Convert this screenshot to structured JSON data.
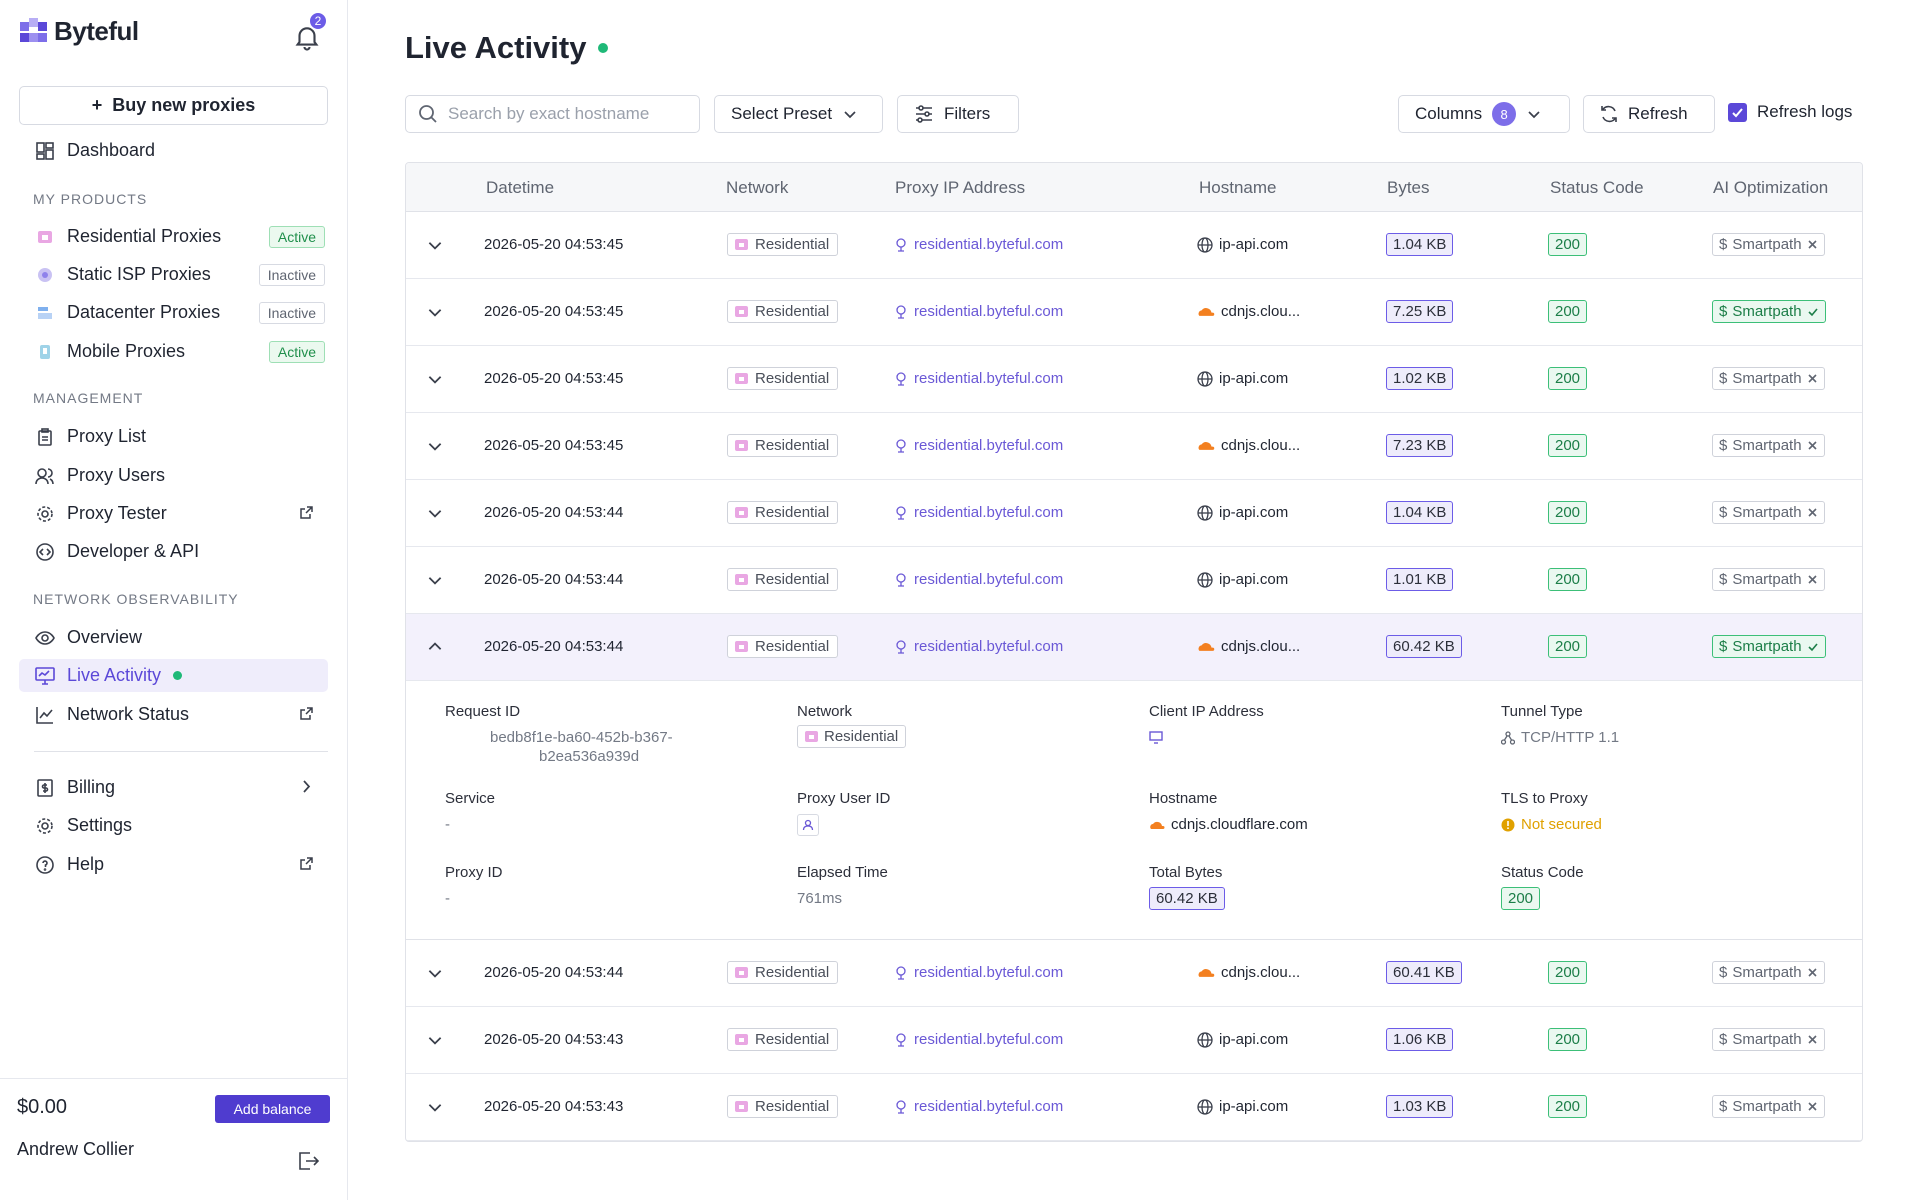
{
  "brand": {
    "name": "Byteful",
    "notifications": "2"
  },
  "sidebar": {
    "buy_label": "Buy new proxies",
    "dashboard": "Dashboard",
    "sections": {
      "products": "MY PRODUCTS",
      "management": "MANAGEMENT",
      "observability": "NETWORK OBSERVABILITY"
    },
    "products": [
      {
        "label": "Residential Proxies",
        "status": "Active"
      },
      {
        "label": "Static ISP Proxies",
        "status": "Inactive"
      },
      {
        "label": "Datacenter Proxies",
        "status": "Inactive"
      },
      {
        "label": "Mobile Proxies",
        "status": "Active"
      }
    ],
    "management": [
      "Proxy List",
      "Proxy Users",
      "Proxy Tester",
      "Developer & API"
    ],
    "observability": [
      "Overview",
      "Live Activity",
      "Network Status"
    ],
    "bottom": [
      "Billing",
      "Settings",
      "Help"
    ],
    "balance": "$0.00",
    "add_balance": "Add balance",
    "user": "Andrew Collier"
  },
  "page": {
    "title": "Live Activity",
    "search_placeholder": "Search by exact hostname",
    "preset": "Select Preset",
    "filters": "Filters",
    "columns": "Columns",
    "columns_count": "8",
    "refresh": "Refresh",
    "refresh_logs": "Refresh logs"
  },
  "table": {
    "headers": [
      "Datetime",
      "Network",
      "Proxy IP Address",
      "Hostname",
      "Bytes",
      "Status Code",
      "AI Optimization"
    ],
    "rows": [
      {
        "datetime": "2026-05-20 04:53:45",
        "network": "Residential",
        "proxy": "residential.byteful.com",
        "host": "ip-api.com",
        "host_icon": "globe-icon",
        "bytes": "1.04 KB",
        "status": "200",
        "ai": "Smartpath",
        "ai_on": false
      },
      {
        "datetime": "2026-05-20 04:53:45",
        "network": "Residential",
        "proxy": "residential.byteful.com",
        "host": "cdnjs.clou...",
        "host_icon": "cloudflare-icon",
        "bytes": "7.25 KB",
        "status": "200",
        "ai": "Smartpath",
        "ai_on": true
      },
      {
        "datetime": "2026-05-20 04:53:45",
        "network": "Residential",
        "proxy": "residential.byteful.com",
        "host": "ip-api.com",
        "host_icon": "globe-icon",
        "bytes": "1.02 KB",
        "status": "200",
        "ai": "Smartpath",
        "ai_on": false
      },
      {
        "datetime": "2026-05-20 04:53:45",
        "network": "Residential",
        "proxy": "residential.byteful.com",
        "host": "cdnjs.clou...",
        "host_icon": "cloudflare-icon",
        "bytes": "7.23 KB",
        "status": "200",
        "ai": "Smartpath",
        "ai_on": false
      },
      {
        "datetime": "2026-05-20 04:53:44",
        "network": "Residential",
        "proxy": "residential.byteful.com",
        "host": "ip-api.com",
        "host_icon": "globe-icon",
        "bytes": "1.04 KB",
        "status": "200",
        "ai": "Smartpath",
        "ai_on": false
      },
      {
        "datetime": "2026-05-20 04:53:44",
        "network": "Residential",
        "proxy": "residential.byteful.com",
        "host": "ip-api.com",
        "host_icon": "globe-icon",
        "bytes": "1.01 KB",
        "status": "200",
        "ai": "Smartpath",
        "ai_on": false
      },
      {
        "datetime": "2026-05-20 04:53:44",
        "network": "Residential",
        "proxy": "residential.byteful.com",
        "host": "cdnjs.clou...",
        "host_icon": "cloudflare-icon",
        "bytes": "60.42 KB",
        "status": "200",
        "ai": "Smartpath",
        "ai_on": true,
        "expanded": true
      },
      {
        "datetime": "2026-05-20 04:53:44",
        "network": "Residential",
        "proxy": "residential.byteful.com",
        "host": "cdnjs.clou...",
        "host_icon": "cloudflare-icon",
        "bytes": "60.41 KB",
        "status": "200",
        "ai": "Smartpath",
        "ai_on": false
      },
      {
        "datetime": "2026-05-20 04:53:43",
        "network": "Residential",
        "proxy": "residential.byteful.com",
        "host": "ip-api.com",
        "host_icon": "globe-icon",
        "bytes": "1.06 KB",
        "status": "200",
        "ai": "Smartpath",
        "ai_on": false
      },
      {
        "datetime": "2026-05-20 04:53:43",
        "network": "Residential",
        "proxy": "residential.byteful.com",
        "host": "ip-api.com",
        "host_icon": "globe-icon",
        "bytes": "1.03 KB",
        "status": "200",
        "ai": "Smartpath",
        "ai_on": false
      }
    ]
  },
  "detail": {
    "request_id_label": "Request ID",
    "request_id_1": "bedb8f1e-ba60-452b-b367-",
    "request_id_2": "b2ea536a939d",
    "network_label": "Network",
    "network": "Residential",
    "client_ip_label": "Client IP Address",
    "tunnel_label": "Tunnel Type",
    "tunnel": "TCP/HTTP 1.1",
    "service_label": "Service",
    "service": "-",
    "proxy_user_label": "Proxy User ID",
    "hostname_label": "Hostname",
    "hostname": "cdnjs.cloudflare.com",
    "tls_label": "TLS to Proxy",
    "tls": "Not secured",
    "proxy_id_label": "Proxy ID",
    "proxy_id": "-",
    "elapsed_label": "Elapsed Time",
    "elapsed": "761ms",
    "total_bytes_label": "Total Bytes",
    "total_bytes": "60.42 KB",
    "status_label": "Status Code",
    "status": "200"
  },
  "colors": {
    "accent": "#5b48d8",
    "success": "#1fb978",
    "warning": "#e0a100",
    "cloudflare": "#f38020"
  }
}
